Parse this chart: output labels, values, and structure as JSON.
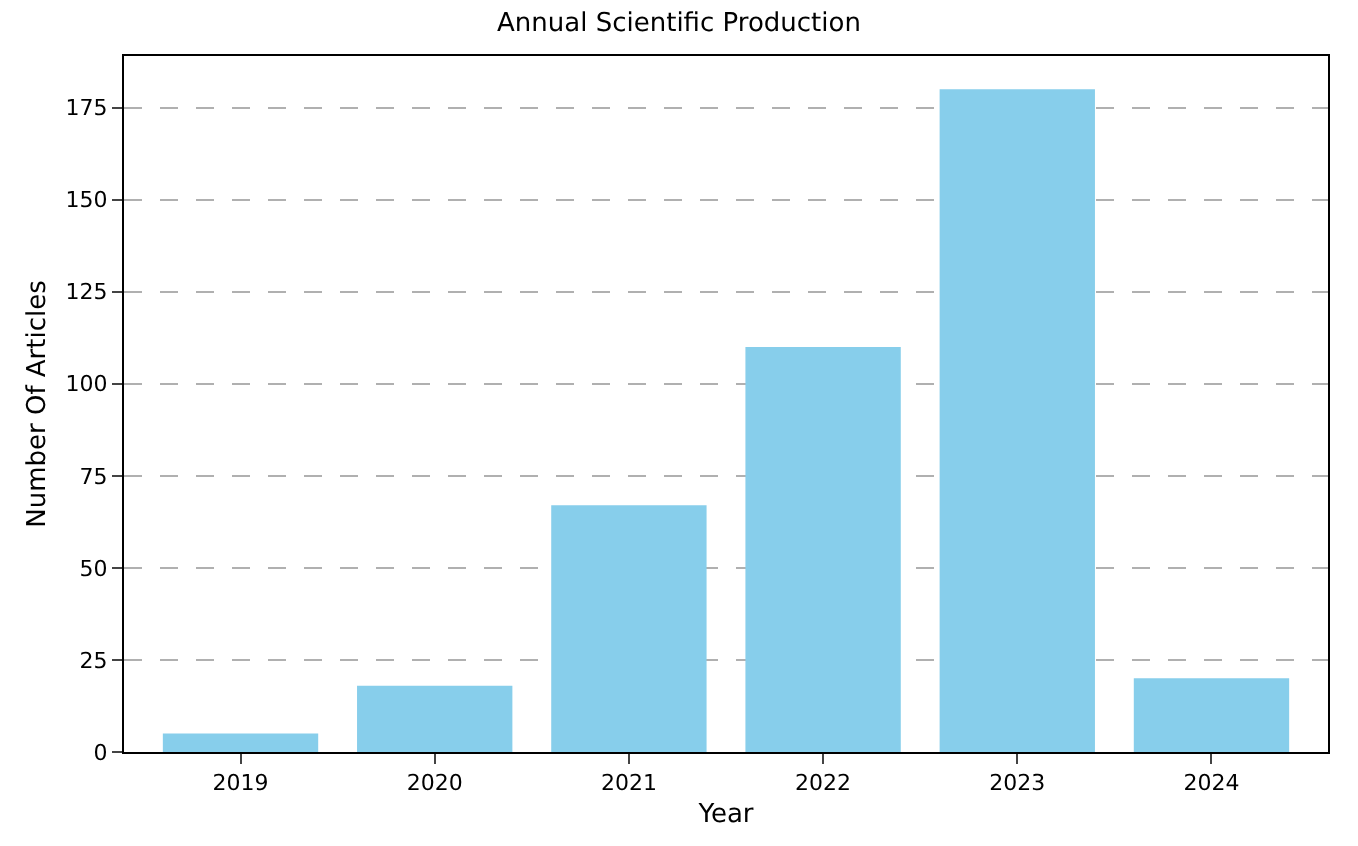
{
  "chart_data": {
    "type": "bar",
    "title": "Annual Scientific Production",
    "xlabel": "Year",
    "ylabel": "Number Of Articles",
    "categories": [
      "2019",
      "2020",
      "2021",
      "2022",
      "2023",
      "2024"
    ],
    "values": [
      5,
      18,
      67,
      110,
      180,
      20
    ],
    "color": "#87ceeb",
    "ylim": [
      0,
      189
    ],
    "yticks": [
      0,
      25,
      50,
      75,
      100,
      125,
      150,
      175
    ],
    "grid": "y"
  }
}
